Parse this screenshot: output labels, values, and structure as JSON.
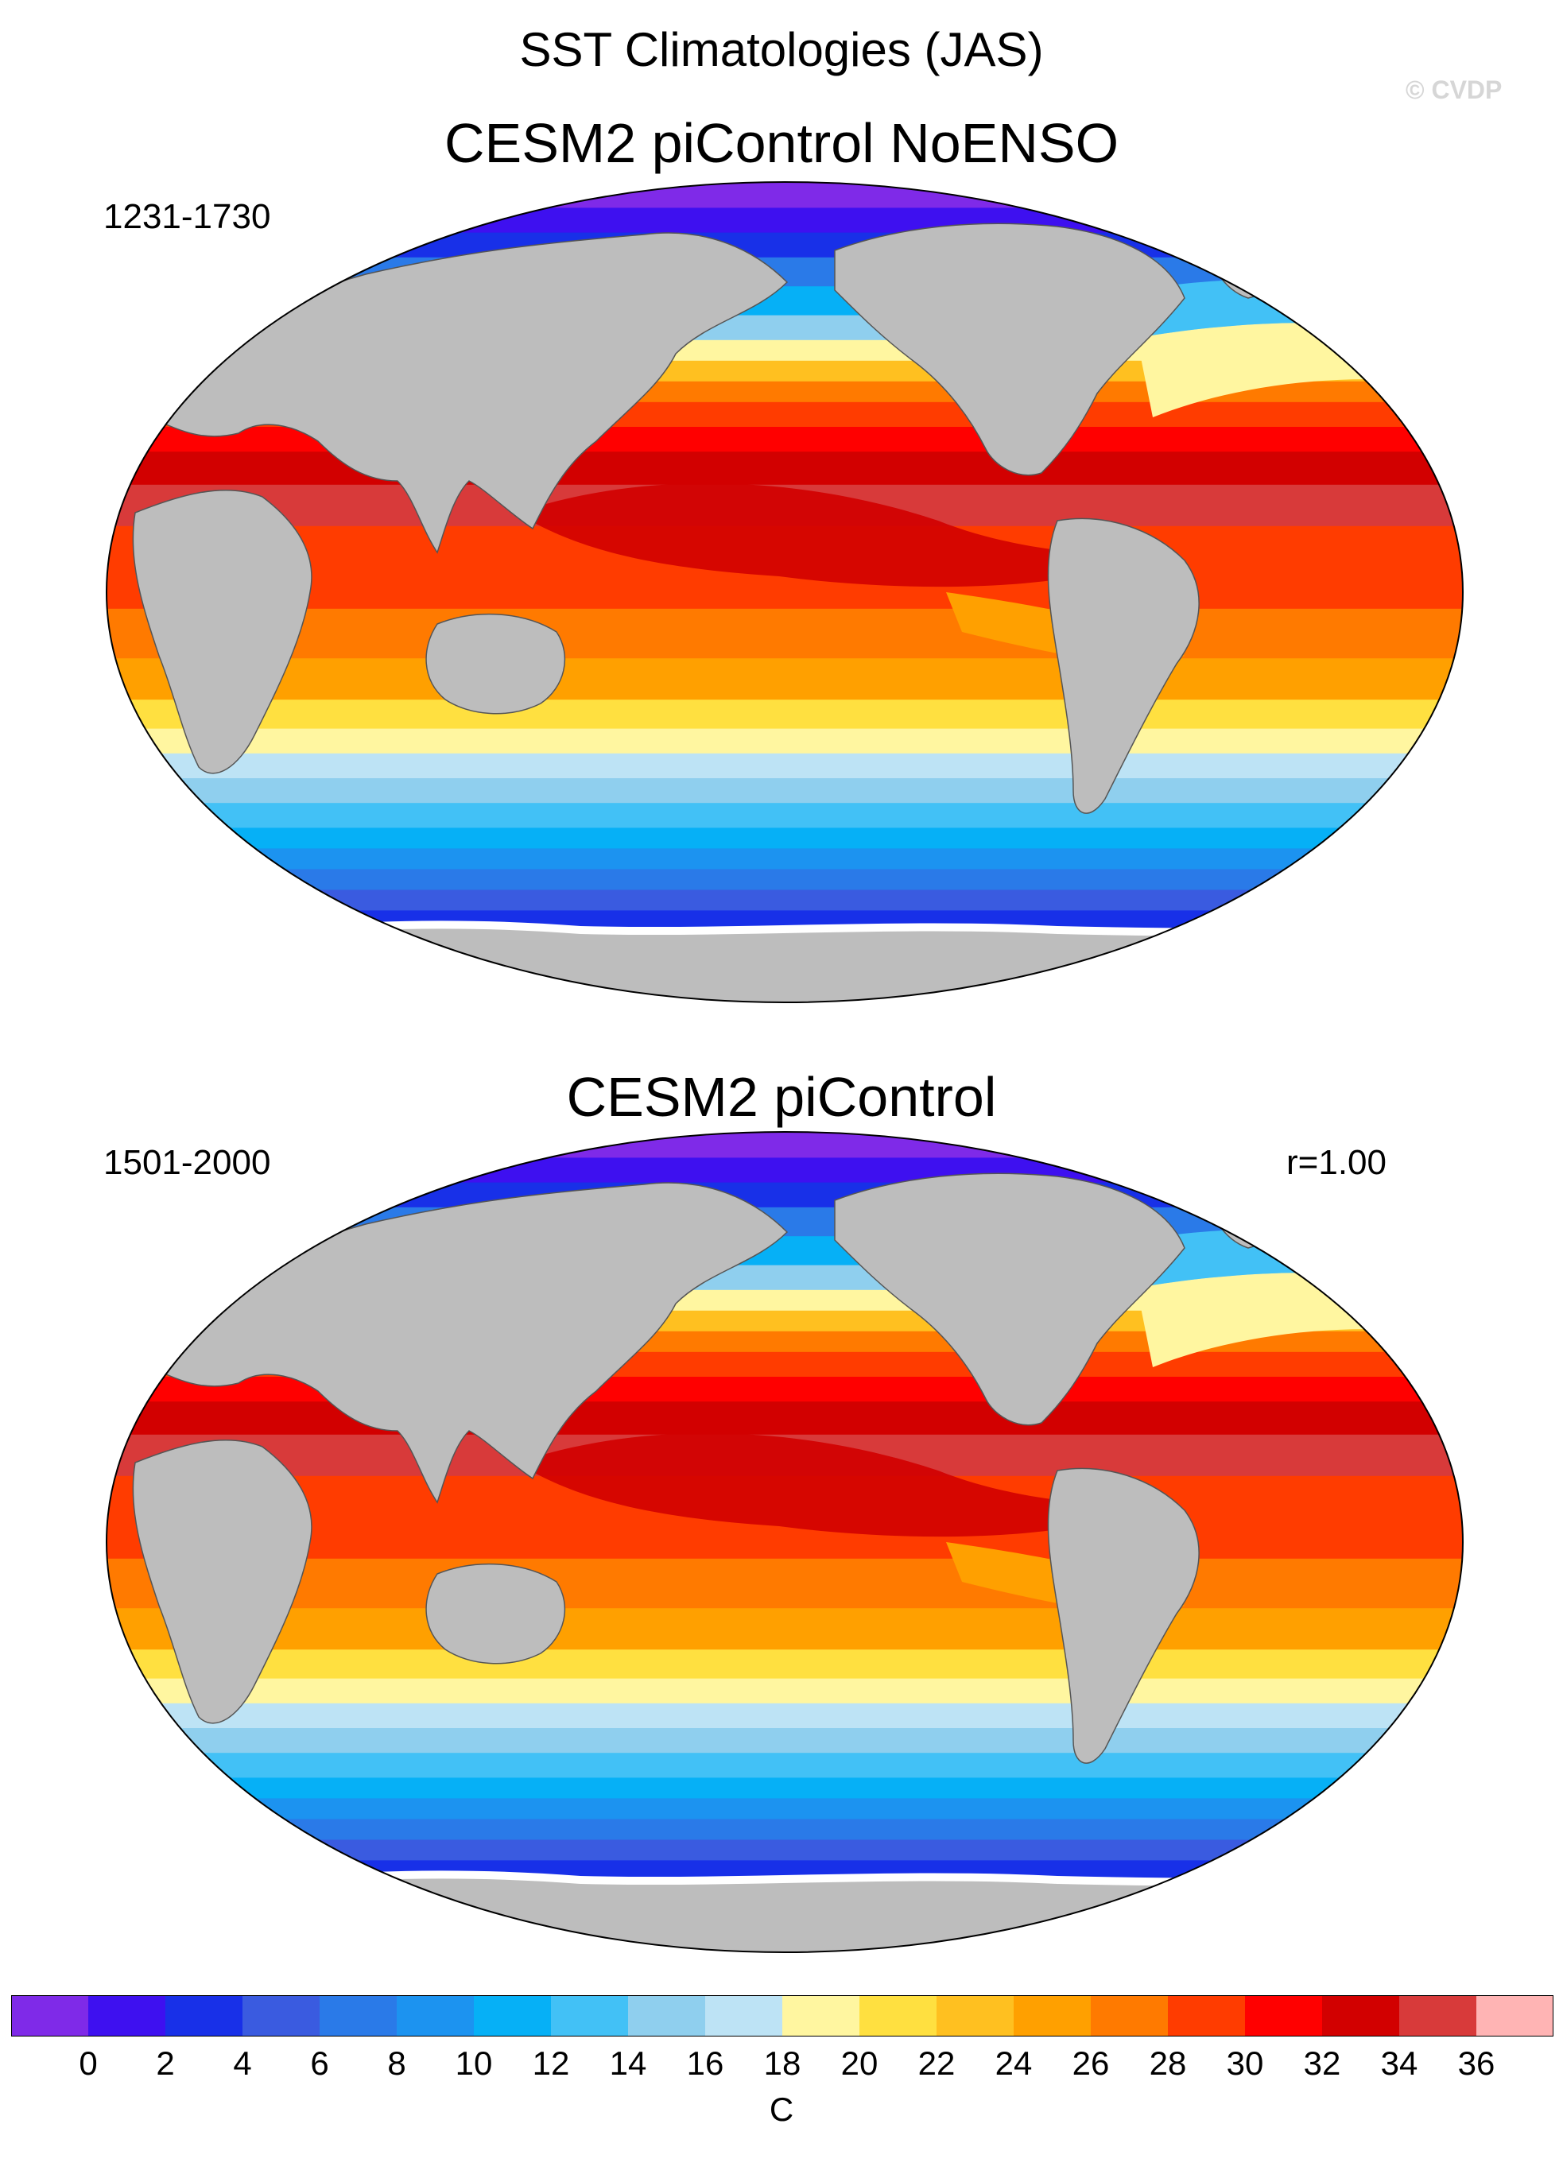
{
  "figure": {
    "title": "SST Climatologies (JAS)",
    "watermark": "© CVDP"
  },
  "panels": [
    {
      "title": "CESM2 piControl NoENSO",
      "years": "1231-1730",
      "corr": ""
    },
    {
      "title": "CESM2 piControl",
      "years": "1501-2000",
      "corr": "r=1.00"
    }
  ],
  "colorbar": {
    "unit": "C",
    "ticks": [
      "0",
      "2",
      "4",
      "6",
      "8",
      "10",
      "12",
      "14",
      "16",
      "18",
      "20",
      "22",
      "24",
      "26",
      "28",
      "30",
      "32",
      "34",
      "36"
    ],
    "colors": [
      "#7f2ae8",
      "#3e10f0",
      "#1830e8",
      "#3a5be0",
      "#2a7ae8",
      "#1c93f0",
      "#06b0f6",
      "#42c1f6",
      "#8fcfee",
      "#bde3f5",
      "#fff6a0",
      "#ffe040",
      "#ffc020",
      "#ffa000",
      "#ff7a00",
      "#ff3c00",
      "#ff0000",
      "#d20000",
      "#d83a3a",
      "#ffb4b4"
    ]
  },
  "map_colors": {
    "land": "#bdbdbd",
    "ice": "#ffffff",
    "coast": "#555555"
  }
}
